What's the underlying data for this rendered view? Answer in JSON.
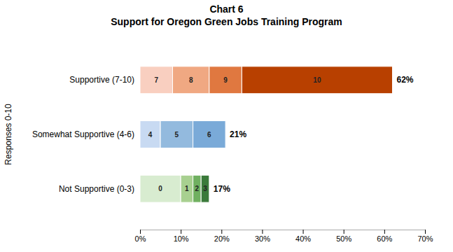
{
  "chart_data": {
    "type": "bar",
    "orientation": "horizontal",
    "stacked": true,
    "title": "Chart 6",
    "subtitle": "Support for Oregon Green Jobs Training Program",
    "ylabel": "Responses 0-10",
    "categories": [
      "Supportive (7-10)",
      "Somewhat Supportive (4-6)",
      "Not Supportive (0-3)"
    ],
    "series": [
      {
        "name": "7",
        "color": "#f9cfc0",
        "values": [
          8,
          null,
          null
        ]
      },
      {
        "name": "8",
        "color": "#f0a882",
        "values": [
          9,
          null,
          null
        ]
      },
      {
        "name": "9",
        "color": "#e07840",
        "values": [
          8,
          null,
          null
        ]
      },
      {
        "name": "10",
        "color": "#b84000",
        "values": [
          37,
          null,
          null
        ]
      },
      {
        "name": "4",
        "color": "#c8daf2",
        "values": [
          null,
          5,
          null
        ]
      },
      {
        "name": "5",
        "color": "#93bade",
        "values": [
          null,
          8,
          null
        ]
      },
      {
        "name": "6",
        "color": "#7aaad8",
        "values": [
          null,
          8,
          null
        ]
      },
      {
        "name": "0",
        "color": "#d8ecd0",
        "values": [
          null,
          null,
          10
        ]
      },
      {
        "name": "1",
        "color": "#a8d090",
        "values": [
          null,
          null,
          3
        ]
      },
      {
        "name": "2",
        "color": "#70b060",
        "values": [
          null,
          null,
          2
        ]
      },
      {
        "name": "3",
        "color": "#3a7a3a",
        "values": [
          null,
          null,
          2
        ]
      }
    ],
    "totals": [
      62,
      21,
      17
    ],
    "total_labels": [
      "62%",
      "21%",
      "17%"
    ],
    "xlim": [
      0,
      70
    ],
    "xticks": [
      {
        "value": 0,
        "label": "0%"
      },
      {
        "value": 10,
        "label": "10%"
      },
      {
        "value": 20,
        "label": "20%"
      },
      {
        "value": 30,
        "label": "30%"
      },
      {
        "value": 40,
        "label": "40%"
      },
      {
        "value": 50,
        "label": "50%"
      },
      {
        "value": 60,
        "label": "60%"
      },
      {
        "value": 70,
        "label": "70%"
      }
    ]
  }
}
